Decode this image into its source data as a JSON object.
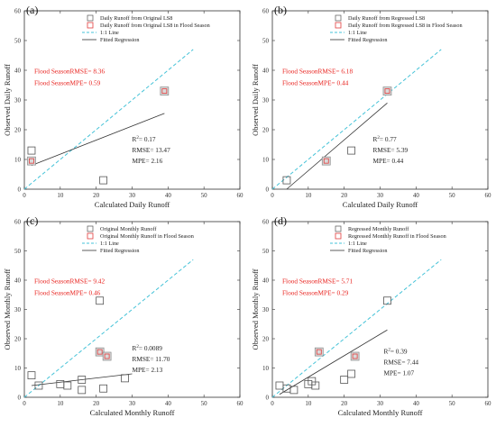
{
  "colors": {
    "black_marker": "#555555",
    "flood_marker": "#e23c3c",
    "flood_fill": "#d9d9d9",
    "one_to_one": "#46c3d8",
    "fit_line": "#333333",
    "flood_text": "#e8211d"
  },
  "chart_data": [
    {
      "type": "scatter",
      "panel_label": "(a)",
      "xlabel": "Calculated Daily Runoff",
      "ylabel": "Observed Daily Runoff",
      "xlim": [
        0,
        60
      ],
      "ylim": [
        0,
        60
      ],
      "x_ticks": [
        "0",
        "10",
        "20",
        "30",
        "40",
        "50",
        "60"
      ],
      "y_ticks": [
        "0",
        "10",
        "20",
        "30",
        "40",
        "50",
        "60"
      ],
      "legend": {
        "placement": "top-right",
        "entries": [
          "Daily Runoff from Original LS8",
          "Daily Runoff from Original LS8 in Flood Season",
          "1:1 Line",
          "Fitted Regression"
        ]
      },
      "series": [
        {
          "name": "Daily Runoff from Original LS8",
          "kind": "black",
          "x": [
            2,
            22
          ],
          "y": [
            13,
            3
          ]
        },
        {
          "name": "Daily Runoff from Original LS8 in Flood Season",
          "kind": "flood",
          "x": [
            2,
            39
          ],
          "y": [
            9.5,
            33
          ]
        },
        {
          "name": "1:1 Line",
          "kind": "identity",
          "x": [
            0,
            47
          ],
          "y": [
            0,
            47
          ]
        },
        {
          "name": "Fitted Regression",
          "kind": "fit",
          "x": [
            2,
            39
          ],
          "y": [
            8,
            25.5
          ]
        }
      ],
      "flood_stats": [
        "Flood SeasonRMSE= 8.36",
        "Flood SeasonMPE= 0.59"
      ],
      "stats": [
        "R²= 0.17",
        "RMSE= 13.47",
        "MPE=  2.16"
      ]
    },
    {
      "type": "scatter",
      "panel_label": "(b)",
      "xlabel": "Calculated Daily Runoff",
      "ylabel": "Observed Daily Runoff",
      "xlim": [
        0,
        60
      ],
      "ylim": [
        0,
        60
      ],
      "x_ticks": [
        "0",
        "10",
        "20",
        "30",
        "40",
        "50",
        "60"
      ],
      "y_ticks": [
        "0",
        "10",
        "20",
        "30",
        "40",
        "50",
        "60"
      ],
      "legend": {
        "placement": "top-right",
        "entries": [
          "Daily Runoff from Regressed LS8",
          "Daily Runoff from Regressed LS8 in Flood Season",
          "1:1 Line",
          "Fitted Regression"
        ]
      },
      "series": [
        {
          "name": "Daily Runoff from Regressed LS8",
          "kind": "black",
          "x": [
            4,
            22
          ],
          "y": [
            3,
            13
          ]
        },
        {
          "name": "Daily Runoff from Regressed LS8 in Flood Season",
          "kind": "flood",
          "x": [
            15,
            32
          ],
          "y": [
            9.5,
            33
          ]
        },
        {
          "name": "1:1 Line",
          "kind": "identity",
          "x": [
            0,
            47
          ],
          "y": [
            0,
            47
          ]
        },
        {
          "name": "Fitted Regression",
          "kind": "fit",
          "x": [
            4,
            32
          ],
          "y": [
            0,
            29
          ]
        }
      ],
      "flood_stats": [
        "Flood SeasonRMSE= 6.18",
        "Flood SeasonMPE= 0.44"
      ],
      "stats": [
        "R²= 0.77",
        "RMSE= 5.39",
        "MPE=  0.44"
      ]
    },
    {
      "type": "scatter",
      "panel_label": "(c)",
      "xlabel": "Calculated Monthly Runoff",
      "ylabel": "Observed Monthly Runoff",
      "xlim": [
        0,
        60
      ],
      "ylim": [
        0,
        60
      ],
      "x_ticks": [
        "0",
        "10",
        "20",
        "30",
        "40",
        "50",
        "60"
      ],
      "y_ticks": [
        "0",
        "10",
        "20",
        "30",
        "40",
        "50",
        "60"
      ],
      "legend": {
        "placement": "top-right",
        "entries": [
          "Original Monthly Runoff",
          "Original Monthly Runoff in Flood Season",
          "1:1 Line",
          "Fitted Regression"
        ]
      },
      "series": [
        {
          "name": "Original Monthly Runoff",
          "kind": "black",
          "x": [
            2,
            4,
            10,
            12,
            16,
            16,
            21,
            22,
            28
          ],
          "y": [
            7.5,
            4,
            4.5,
            4,
            2.5,
            6,
            33,
            3,
            6.5
          ]
        },
        {
          "name": "Original Monthly Runoff in Flood Season",
          "kind": "flood",
          "x": [
            21,
            23
          ],
          "y": [
            15.5,
            14
          ]
        },
        {
          "name": "1:1 Line",
          "kind": "identity",
          "x": [
            0,
            47
          ],
          "y": [
            0,
            47
          ]
        },
        {
          "name": "Fitted Regression",
          "kind": "fit",
          "x": [
            2,
            30
          ],
          "y": [
            4,
            8
          ]
        }
      ],
      "flood_stats": [
        "Flood SeasonRMSE= 9.42",
        "Flood SeasonMPE= 0.46"
      ],
      "stats": [
        "R²= 0.0089",
        "RMSE= 11.70",
        "MPE=  2.13"
      ]
    },
    {
      "type": "scatter",
      "panel_label": "(d)",
      "xlabel": "Calculated Monthly Runoff",
      "ylabel": "Observed Monthly Runoff",
      "xlim": [
        0,
        60
      ],
      "ylim": [
        0,
        60
      ],
      "x_ticks": [
        "0",
        "10",
        "20",
        "30",
        "40",
        "50",
        "60"
      ],
      "y_ticks": [
        "0",
        "10",
        "20",
        "30",
        "40",
        "50",
        "60"
      ],
      "legend": {
        "placement": "top-right",
        "entries": [
          "Regressed Monthly Runoff",
          "Regressed Monthly Runoff in Flood Season",
          "1:1 Line",
          "Fitted Regression"
        ]
      },
      "series": [
        {
          "name": "Regressed Monthly Runoff",
          "kind": "black",
          "x": [
            2,
            4,
            6,
            10,
            11,
            12,
            20,
            22,
            32
          ],
          "y": [
            4,
            3,
            2.5,
            4.5,
            5.5,
            4,
            6,
            8,
            33
          ]
        },
        {
          "name": "Regressed Monthly Runoff in Flood Season",
          "kind": "flood",
          "x": [
            13,
            23
          ],
          "y": [
            15.5,
            14
          ]
        },
        {
          "name": "1:1 Line",
          "kind": "identity",
          "x": [
            0,
            47
          ],
          "y": [
            0,
            47
          ]
        },
        {
          "name": "Fitted Regression",
          "kind": "fit",
          "x": [
            2,
            32
          ],
          "y": [
            1,
            23
          ]
        }
      ],
      "flood_stats": [
        "Flood SeasonRMSE= 5.71",
        "Flood SeasonMPE= 0.29"
      ],
      "stats": [
        "R²= 0.39",
        "RMSE= 7.44",
        "MPE=  1.07"
      ]
    }
  ]
}
